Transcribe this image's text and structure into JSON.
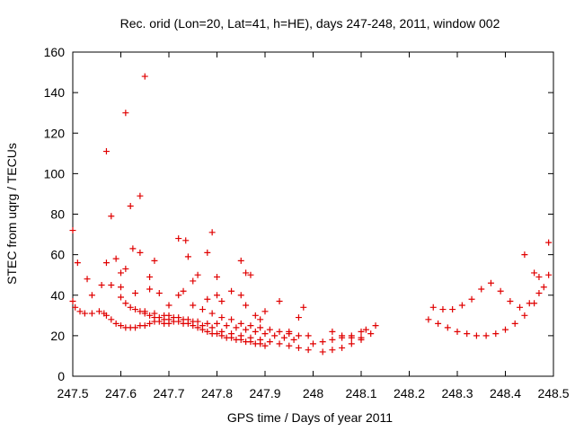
{
  "chart_data": {
    "type": "scatter",
    "title": "Rec. orid (Lon=20, Lat=41, h=HE), days 247-248, 2011, window 002",
    "xlabel": "GPS time / Days of year 2011",
    "ylabel": "STEC from uqrg / TECUs",
    "xlim": [
      247.5,
      248.5
    ],
    "ylim": [
      0,
      160
    ],
    "xticks": [
      "247.5",
      "247.6",
      "247.7",
      "247.8",
      "247.9",
      "248",
      "248.1",
      "248.2",
      "248.3",
      "248.4",
      "248.5"
    ],
    "yticks": [
      "0",
      "20",
      "40",
      "60",
      "80",
      "100",
      "120",
      "140",
      "160"
    ],
    "grid": false,
    "legend": "none",
    "marker": "+",
    "color": "#e00000",
    "series": [
      {
        "x": [
          247.5,
          247.505,
          247.515,
          247.525,
          247.54,
          247.555,
          247.565,
          247.57,
          247.58,
          247.59,
          247.6,
          247.61,
          247.62,
          247.63,
          247.64,
          247.65,
          247.66,
          247.67,
          247.68,
          247.69,
          247.7
        ],
        "y": [
          37,
          34,
          32,
          31,
          31,
          32,
          31,
          30,
          28,
          26,
          25,
          24,
          24,
          24,
          25,
          25,
          26,
          27,
          27,
          26,
          26
        ]
      },
      {
        "x": [
          247.6,
          247.61,
          247.62,
          247.63,
          247.64,
          247.65,
          247.66,
          247.67,
          247.68,
          247.69,
          247.7,
          247.71,
          247.72,
          247.73,
          247.74,
          247.75,
          247.76,
          247.77,
          247.78,
          247.79,
          247.8,
          247.81,
          247.82,
          247.83,
          247.84,
          247.85,
          247.86,
          247.87,
          247.88,
          247.89,
          247.9
        ],
        "y": [
          39,
          36,
          34,
          33,
          32,
          31,
          30,
          29,
          29,
          28,
          28,
          27,
          27,
          26,
          26,
          25,
          24,
          23,
          22,
          21,
          21,
          20,
          19,
          19,
          18,
          18,
          17,
          17,
          16,
          16,
          15
        ]
      },
      {
        "x": [
          247.65,
          247.67,
          247.69,
          247.71,
          247.73,
          247.75,
          247.77,
          247.79,
          247.81,
          247.83,
          247.85,
          247.87,
          247.89,
          247.91,
          247.93,
          247.95,
          247.97,
          247.99
        ],
        "y": [
          32,
          31,
          30,
          29,
          28,
          27,
          25,
          24,
          22,
          21,
          20,
          19,
          18,
          17,
          16,
          15,
          14,
          13
        ]
      },
      {
        "x": [
          247.7,
          247.72,
          247.74,
          247.76,
          247.78,
          247.8,
          247.82,
          247.84,
          247.86,
          247.88,
          247.9,
          247.92,
          247.94,
          247.96
        ],
        "y": [
          30,
          29,
          28,
          27,
          26,
          26,
          25,
          24,
          23,
          22,
          21,
          20,
          19,
          18
        ]
      },
      {
        "x": [
          247.75,
          247.77,
          247.79,
          247.81,
          247.83,
          247.85,
          247.87,
          247.89,
          247.91,
          247.93,
          247.95,
          247.97,
          247.99
        ],
        "y": [
          35,
          33,
          31,
          29,
          28,
          26,
          25,
          24,
          23,
          22,
          21,
          20,
          20
        ]
      },
      {
        "x": [
          248.02,
          248.04,
          248.06,
          248.08,
          248.1,
          248.12
        ],
        "y": [
          12,
          13,
          14,
          16,
          18,
          21
        ]
      },
      {
        "x": [
          248.0,
          248.02,
          248.04,
          248.06,
          248.08,
          248.1
        ],
        "y": [
          16,
          17,
          18,
          19,
          20,
          22
        ]
      },
      {
        "x": [
          248.04,
          248.06,
          248.08,
          248.1
        ],
        "y": [
          22,
          20,
          19,
          19
        ]
      },
      {
        "x": [
          248.24,
          248.26,
          248.28,
          248.3,
          248.32,
          248.34,
          248.36,
          248.38,
          248.4,
          248.42,
          248.44,
          248.46,
          248.48
        ],
        "y": [
          28,
          26,
          24,
          22,
          21,
          20,
          20,
          21,
          23,
          26,
          30,
          36,
          44
        ]
      },
      {
        "x": [
          248.25,
          248.27,
          248.29,
          248.31,
          248.33,
          248.35,
          248.37,
          248.39,
          248.41,
          248.43,
          248.45,
          248.47,
          248.49
        ],
        "y": [
          34,
          33,
          33,
          35,
          38,
          43,
          46,
          42,
          37,
          34,
          36,
          41,
          50
        ]
      },
      {
        "x": [
          247.5,
          247.51,
          247.53,
          247.57,
          247.58,
          247.59,
          247.6,
          247.61,
          247.62,
          247.625,
          247.64,
          247.65,
          247.66,
          247.67,
          247.72,
          247.735,
          247.78,
          247.79,
          247.8,
          247.85,
          247.86,
          247.87,
          248.44,
          248.46,
          248.47,
          248.49
        ],
        "y": [
          72,
          56,
          48,
          111,
          79,
          58,
          51,
          130,
          84,
          63,
          61,
          148,
          49,
          57,
          68,
          67,
          61,
          71,
          49,
          57,
          51,
          50,
          60,
          51,
          49,
          66
        ]
      },
      {
        "x": [
          247.54,
          247.56,
          247.57,
          247.58,
          247.6,
          247.61,
          247.63,
          247.64,
          247.66,
          247.68,
          247.7,
          247.72,
          247.73,
          247.74,
          247.75,
          247.76,
          247.78,
          247.8,
          247.81,
          247.83,
          247.85,
          247.86,
          247.88,
          247.89,
          247.9,
          247.93,
          247.95,
          247.97,
          247.98,
          248.11,
          248.13
        ],
        "y": [
          40,
          45,
          56,
          45,
          44,
          53,
          41,
          89,
          43,
          41,
          35,
          40,
          42,
          59,
          47,
          50,
          38,
          40,
          37,
          42,
          40,
          35,
          30,
          28,
          32,
          37,
          22,
          29,
          34,
          23,
          25
        ]
      }
    ]
  }
}
